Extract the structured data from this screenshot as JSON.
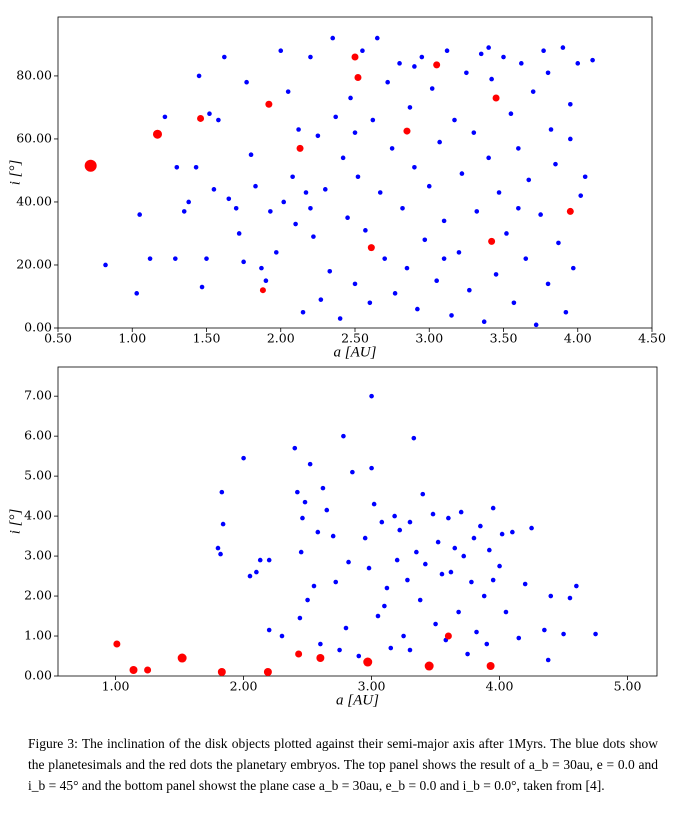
{
  "chart_data": [
    {
      "type": "scatter",
      "xlabel": "a [AU]",
      "ylabel": "i [°]",
      "xlim": [
        0.5,
        4.5
      ],
      "ylim": [
        0,
        98.7
      ],
      "xticks": [
        {
          "value": 0.5,
          "label": "0.50"
        },
        {
          "value": 1,
          "label": "1.00"
        },
        {
          "value": 1.5,
          "label": "1.50"
        },
        {
          "value": 2,
          "label": "2.00"
        },
        {
          "value": 2.5,
          "label": "2.50"
        },
        {
          "value": 3,
          "label": "3.00"
        },
        {
          "value": 3.5,
          "label": "3.50"
        },
        {
          "value": 4,
          "label": "4.00"
        },
        {
          "value": 4.5,
          "label": "4.50"
        }
      ],
      "yticks": [
        {
          "value": 0,
          "label": "0.00"
        },
        {
          "value": 20,
          "label": "20.00"
        },
        {
          "value": 40,
          "label": "40.00"
        },
        {
          "value": 60,
          "label": "60.00"
        },
        {
          "value": 80,
          "label": "80.00"
        }
      ],
      "series": [
        {
          "color": "#0000ff",
          "marker_size": 2.3,
          "x": [
            0.82,
            1.03,
            1.05,
            1.12,
            1.22,
            1.29,
            1.3,
            1.35,
            1.38,
            1.43,
            1.45,
            1.47,
            1.5,
            1.52,
            1.55,
            1.58,
            1.62,
            1.65,
            1.7,
            1.72,
            1.75,
            1.77,
            1.8,
            1.83,
            1.87,
            1.9,
            1.93,
            1.97,
            2.0,
            2.02,
            2.05,
            2.08,
            2.1,
            2.12,
            2.15,
            2.17,
            2.2,
            2.22,
            2.25,
            2.27,
            2.3,
            2.33,
            2.35,
            2.37,
            2.4,
            2.42,
            2.45,
            2.47,
            2.5,
            2.52,
            2.55,
            2.57,
            2.6,
            2.62,
            2.65,
            2.67,
            2.7,
            2.72,
            2.75,
            2.77,
            2.8,
            2.82,
            2.85,
            2.87,
            2.9,
            2.92,
            2.95,
            2.97,
            3.0,
            3.02,
            3.05,
            3.07,
            3.1,
            3.12,
            3.15,
            3.17,
            3.2,
            3.22,
            3.25,
            3.27,
            3.3,
            3.32,
            3.35,
            3.37,
            3.4,
            3.42,
            3.45,
            3.47,
            3.5,
            3.52,
            3.55,
            3.57,
            3.6,
            3.62,
            3.65,
            3.67,
            3.7,
            3.72,
            3.75,
            3.77,
            3.8,
            3.82,
            3.85,
            3.87,
            3.9,
            3.92,
            3.95,
            3.97,
            4.0,
            4.02,
            4.1,
            4.05,
            2.5,
            3.1,
            3.6,
            2.9,
            3.8,
            3.4,
            2.2,
            3.95
          ],
          "values": [
            20,
            11,
            36,
            22,
            67,
            22,
            51,
            37,
            40,
            51,
            80,
            13,
            22,
            68,
            44,
            66,
            86,
            41,
            38,
            30,
            21,
            78,
            55,
            45,
            19,
            15,
            37,
            24,
            88,
            40,
            75,
            48,
            33,
            63,
            5,
            43,
            86,
            29,
            61,
            9,
            44,
            18,
            92,
            67,
            3,
            54,
            35,
            73,
            14,
            48,
            88,
            31,
            8,
            66,
            92,
            43,
            22,
            78,
            57,
            11,
            84,
            38,
            19,
            70,
            51,
            6,
            86,
            28,
            45,
            76,
            15,
            59,
            34,
            88,
            4,
            66,
            24,
            49,
            81,
            12,
            62,
            37,
            87,
            2,
            54,
            79,
            17,
            43,
            86,
            30,
            68,
            8,
            57,
            84,
            22,
            47,
            75,
            1,
            36,
            88,
            14,
            63,
            52,
            27,
            89,
            5,
            71,
            19,
            84,
            42,
            85,
            48,
            62,
            22,
            38,
            83,
            81,
            89,
            38,
            60
          ]
        },
        {
          "color": "#ff0000",
          "x": [
            0.72,
            1.17,
            1.46,
            1.92,
            1.88,
            2.13,
            2.5,
            2.52,
            2.61,
            2.85,
            3.05,
            3.42,
            3.45,
            3.95
          ],
          "values": [
            51.5,
            61.5,
            66.5,
            71,
            12,
            57,
            86,
            79.5,
            25.5,
            62.5,
            83.5,
            27.5,
            73,
            37
          ],
          "sizes": [
            6,
            4.5,
            3.5,
            3.5,
            3,
            3.5,
            3.5,
            3.5,
            3.5,
            3.5,
            3.5,
            3.5,
            3.5,
            3.5
          ]
        }
      ]
    },
    {
      "type": "scatter",
      "xlabel": "a [AU]",
      "ylabel": "i [°]",
      "xlim": [
        0.55,
        5.23
      ],
      "ylim": [
        0,
        7.73
      ],
      "xticks": [
        {
          "value": 1,
          "label": "1.00"
        },
        {
          "value": 2,
          "label": "2.00"
        },
        {
          "value": 3,
          "label": "3.00"
        },
        {
          "value": 4,
          "label": "4.00"
        },
        {
          "value": 5,
          "label": "5.00"
        }
      ],
      "yticks": [
        {
          "value": 0,
          "label": "0.00"
        },
        {
          "value": 1,
          "label": "1.00"
        },
        {
          "value": 2,
          "label": "2.00"
        },
        {
          "value": 3,
          "label": "3.00"
        },
        {
          "value": 4,
          "label": "4.00"
        },
        {
          "value": 5,
          "label": "5.00"
        },
        {
          "value": 6,
          "label": "6.00"
        },
        {
          "value": 7,
          "label": "7.00"
        }
      ],
      "series": [
        {
          "color": "#0000ff",
          "marker_size": 2.3,
          "x": [
            1.83,
            1.84,
            1.8,
            1.82,
            2.0,
            2.05,
            2.1,
            2.13,
            2.2,
            2.2,
            2.3,
            2.4,
            2.42,
            2.44,
            2.46,
            2.48,
            2.5,
            2.52,
            2.55,
            2.58,
            2.6,
            2.62,
            2.65,
            2.7,
            2.72,
            2.75,
            2.78,
            2.8,
            2.82,
            2.85,
            2.9,
            2.95,
            2.98,
            3.0,
            3.02,
            3.05,
            3.08,
            3.1,
            3.12,
            3.15,
            3.18,
            3.2,
            3.22,
            3.25,
            3.28,
            3.3,
            3.33,
            3.35,
            3.38,
            3.4,
            3.42,
            3.45,
            3.48,
            3.5,
            3.52,
            3.55,
            3.58,
            3.6,
            3.62,
            3.65,
            3.68,
            3.7,
            3.72,
            3.75,
            3.78,
            3.8,
            3.82,
            3.85,
            3.88,
            3.9,
            3.92,
            3.95,
            4.0,
            4.02,
            4.05,
            4.1,
            4.15,
            4.2,
            4.25,
            4.35,
            4.38,
            4.4,
            4.5,
            4.55,
            4.6,
            4.75,
            2.45,
            3.0,
            3.3,
            3.95
          ],
          "values": [
            4.6,
            3.8,
            3.2,
            3.05,
            5.45,
            2.5,
            2.6,
            2.9,
            2.9,
            1.15,
            1.0,
            5.7,
            4.6,
            1.45,
            3.95,
            4.35,
            1.9,
            5.3,
            2.25,
            3.6,
            0.8,
            4.7,
            4.15,
            3.5,
            2.35,
            0.65,
            6.0,
            1.2,
            2.85,
            5.1,
            0.5,
            3.45,
            2.7,
            7.0,
            4.3,
            1.5,
            3.85,
            1.75,
            2.2,
            0.7,
            4.0,
            2.9,
            3.65,
            1.0,
            2.4,
            0.65,
            5.95,
            3.1,
            1.9,
            4.55,
            2.8,
            0.25,
            4.05,
            1.3,
            3.35,
            2.55,
            0.9,
            3.95,
            2.6,
            3.2,
            1.6,
            4.1,
            3.0,
            0.55,
            2.35,
            3.45,
            1.1,
            3.75,
            2.0,
            0.8,
            3.15,
            4.2,
            2.75,
            3.55,
            1.6,
            3.6,
            0.95,
            2.3,
            3.7,
            1.15,
            0.4,
            2.0,
            1.05,
            1.95,
            2.25,
            1.05,
            3.1,
            5.2,
            3.85,
            2.4
          ]
        },
        {
          "color": "#ff0000",
          "x": [
            1.01,
            1.14,
            1.25,
            1.52,
            1.83,
            2.19,
            2.43,
            2.6,
            2.97,
            3.45,
            3.6,
            3.93
          ],
          "values": [
            0.8,
            0.15,
            0.15,
            0.45,
            0.1,
            0.1,
            0.55,
            0.45,
            0.35,
            0.25,
            1.0,
            0.25
          ],
          "sizes": [
            3.5,
            4,
            3.5,
            4.5,
            4,
            4,
            3.5,
            4,
            4.5,
            4.5,
            3.5,
            4
          ]
        }
      ]
    }
  ],
  "caption": "Figure 3: The inclination of the disk objects plotted against their semi-major axis after 1Myrs. The blue dots show the planetesimals and the red dots the planetary embryos. The top panel shows the result of a_b = 30au, e = 0.0 and i_b = 45° and the bottom panel showst the plane case a_b = 30au, e_b = 0.0 and i_b = 0.0°, taken from [4]."
}
